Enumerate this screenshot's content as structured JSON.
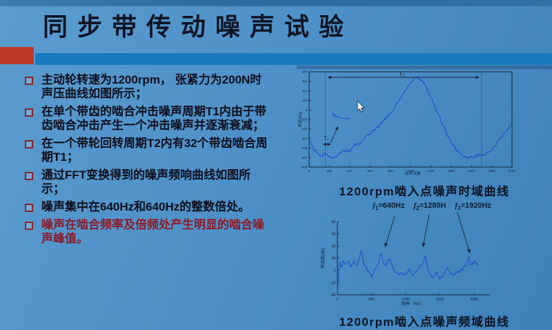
{
  "slide": {
    "title": "同步带传动噪声试验",
    "accent_red": "#bc3927",
    "accent_blue": "#187abc",
    "background_blue": "#4b8ec6",
    "bullets": [
      {
        "text": "主动轮转速为1200rpm， 张紧力为200N时声压曲线如图所示；",
        "emphasis": false
      },
      {
        "text": "在单个带齿的啮合冲击噪声周期T1内由于带齿啮合冲击产生一个冲击噪声并逐渐衰减；",
        "emphasis": false
      },
      {
        "text": "在一个带轮回转周期T2内有32个带齿啮合周期T1；",
        "emphasis": false
      },
      {
        "text": "通过FFT变换得到的噪声频响曲线如图所示；",
        "emphasis": false
      },
      {
        "text": "噪声集中在640Hz和640Hz的整数倍处。",
        "emphasis": false
      },
      {
        "text": "噪声在啮合频率及倍频处产生明显的啮合噪声峰值。",
        "emphasis": true
      }
    ]
  },
  "figures": {
    "time_caption": "1200rpm啮入点噪声时域曲线",
    "freq_caption": "1200rpm啮入点噪声频域曲线",
    "freq_labels": [
      {
        "name": "f",
        "sub": "1",
        "value": "=640Hz"
      },
      {
        "name": "f",
        "sub": "2",
        "value": "=1280H"
      },
      {
        "name": "f",
        "sub": "3",
        "value": "=1920Hz"
      }
    ],
    "annotations": {
      "t2": {
        "name": "T",
        "sub": "2"
      },
      "t1": {
        "name": "T",
        "sub": "1"
      }
    }
  },
  "chart_data": [
    {
      "type": "line",
      "title": "1200rpm啮入点噪声时域曲线",
      "xlabel": "采样点数",
      "ylabel": "声压(Pa)",
      "xlim": [
        0,
        2000
      ],
      "ylim": [
        -600,
        400
      ],
      "xticks": [
        0,
        200,
        400,
        600,
        800,
        1000,
        1200,
        1400,
        1600,
        1800,
        2000
      ],
      "yticks": [
        400,
        300,
        200,
        100,
        0,
        -100,
        -200,
        -300,
        -400,
        -500,
        -600
      ],
      "line_color": "#2157c8",
      "grid": false,
      "annotation_notes": "T1 = single tooth meshing impact period (small span near x≈160); T2 = one pulley revolution period spanning x≈160 to x≈1700; inset shows decaying impact noise burst",
      "keypoints": [
        [
          0,
          -310
        ],
        [
          50,
          -420
        ],
        [
          110,
          -490
        ],
        [
          170,
          -455
        ],
        [
          230,
          -510
        ],
        [
          290,
          -470
        ],
        [
          340,
          -415
        ],
        [
          400,
          -440
        ],
        [
          450,
          -370
        ],
        [
          510,
          -345
        ],
        [
          560,
          -270
        ],
        [
          620,
          -235
        ],
        [
          680,
          -180
        ],
        [
          740,
          -115
        ],
        [
          800,
          -40
        ],
        [
          860,
          60
        ],
        [
          920,
          160
        ],
        [
          970,
          240
        ],
        [
          1020,
          315
        ],
        [
          1060,
          348
        ],
        [
          1100,
          320
        ],
        [
          1150,
          250
        ],
        [
          1200,
          140
        ],
        [
          1250,
          10
        ],
        [
          1300,
          -110
        ],
        [
          1350,
          -240
        ],
        [
          1400,
          -340
        ],
        [
          1450,
          -420
        ],
        [
          1510,
          -480
        ],
        [
          1570,
          -505
        ],
        [
          1650,
          -480
        ],
        [
          1730,
          -465
        ],
        [
          1800,
          -420
        ],
        [
          1870,
          -325
        ],
        [
          1930,
          -235
        ],
        [
          2000,
          -145
        ]
      ]
    },
    {
      "type": "line",
      "title": "1200rpm啮入点噪声频域曲线",
      "xlabel": "频率（Hz）",
      "ylabel": "声压级(dB)",
      "xlim": [
        0,
        2230
      ],
      "ylim": [
        -40,
        80
      ],
      "xticks": [
        0,
        500,
        1000,
        1500,
        2000
      ],
      "yticks": [
        80,
        60,
        40,
        20,
        0,
        -20,
        -40
      ],
      "line_color": "#2157c8",
      "grid": false,
      "peaks": [
        {
          "frequency_hz": 640,
          "level_db": 30
        },
        {
          "frequency_hz": 1280,
          "level_db": 26
        },
        {
          "frequency_hz": 1920,
          "level_db": 23
        }
      ],
      "keypoints": [
        [
          0,
          -38
        ],
        [
          15,
          -8
        ],
        [
          30,
          15
        ],
        [
          55,
          4
        ],
        [
          85,
          17
        ],
        [
          120,
          10
        ],
        [
          160,
          16
        ],
        [
          200,
          8
        ],
        [
          240,
          14
        ],
        [
          280,
          7
        ],
        [
          330,
          24
        ],
        [
          355,
          31
        ],
        [
          385,
          11
        ],
        [
          425,
          5
        ],
        [
          465,
          -3
        ],
        [
          500,
          -10
        ],
        [
          545,
          2
        ],
        [
          595,
          11
        ],
        [
          640,
          30
        ],
        [
          670,
          12
        ],
        [
          705,
          6
        ],
        [
          745,
          19
        ],
        [
          785,
          13
        ],
        [
          825,
          2
        ],
        [
          865,
          -5
        ],
        [
          905,
          -7
        ],
        [
          955,
          -3
        ],
        [
          1005,
          -6
        ],
        [
          1055,
          1
        ],
        [
          1105,
          -7
        ],
        [
          1155,
          -2
        ],
        [
          1205,
          6
        ],
        [
          1255,
          12
        ],
        [
          1285,
          26
        ],
        [
          1315,
          3
        ],
        [
          1365,
          -8
        ],
        [
          1405,
          -12
        ],
        [
          1445,
          -2
        ],
        [
          1495,
          -11
        ],
        [
          1545,
          -7
        ],
        [
          1595,
          3
        ],
        [
          1645,
          -1
        ],
        [
          1695,
          -9
        ],
        [
          1745,
          -4
        ],
        [
          1795,
          -1
        ],
        [
          1845,
          2
        ],
        [
          1895,
          13
        ],
        [
          1925,
          23
        ],
        [
          1955,
          8
        ],
        [
          2005,
          15
        ],
        [
          2050,
          8
        ]
      ]
    }
  ]
}
